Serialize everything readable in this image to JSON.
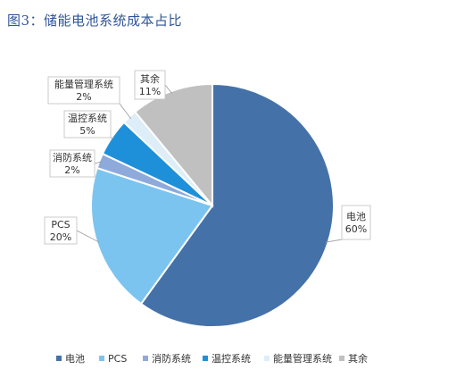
{
  "figure": {
    "title": "图3：储能电池系统成本占比"
  },
  "chart_data": {
    "type": "pie",
    "title": "",
    "slices": [
      {
        "label": "电池",
        "value": 60,
        "value_label": "60%",
        "color": "#4472a8"
      },
      {
        "label": "PCS",
        "value": 20,
        "value_label": "20%",
        "color": "#7cc4f0"
      },
      {
        "label": "消防系统",
        "value": 2,
        "value_label": "2%",
        "color": "#8eaadb"
      },
      {
        "label": "温控系统",
        "value": 5,
        "value_label": "5%",
        "color": "#1e90d9"
      },
      {
        "label": "能量管理系统",
        "value": 2,
        "value_label": "2%",
        "color": "#ddeef8"
      },
      {
        "label": "其余",
        "value": 11,
        "value_label": "11%",
        "color": "#c0c0c0"
      }
    ],
    "legend": {
      "placement": "bottom"
    }
  }
}
